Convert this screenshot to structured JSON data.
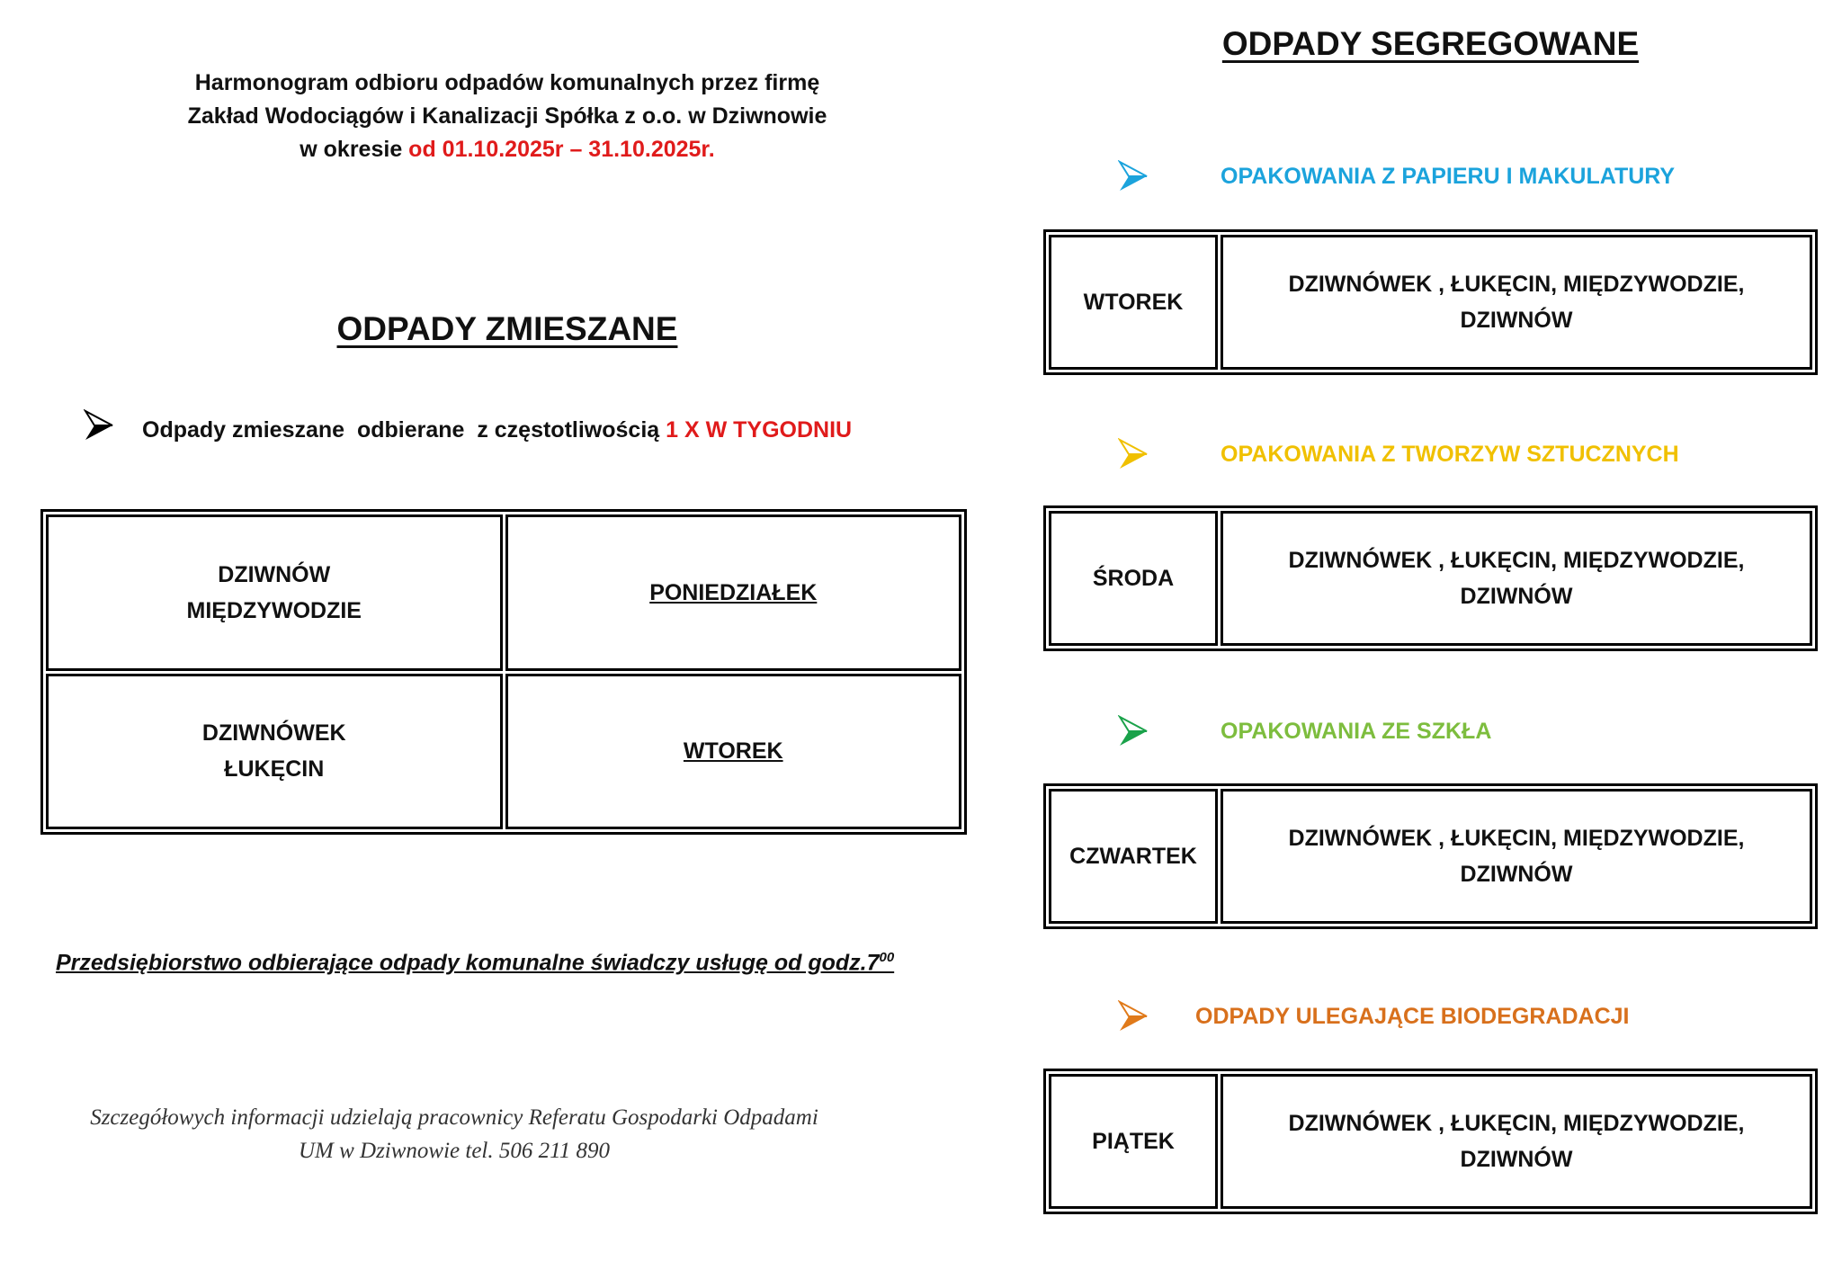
{
  "header": {
    "line1": "Harmonogram odbioru odpadów komunalnych przez firmę",
    "line2": "Zakład Wodociągów i Kanalizacji Spółka z o.o. w Dziwnowie",
    "line3_prefix": "w okresie ",
    "line3_period": "od 01.10.2025r – 31.10.2025r."
  },
  "mixed": {
    "title": "ODPADY ZMIESZANE",
    "frequency_prefix": "Odpady zmieszane  odbierane  z częstotliwością ",
    "frequency_value": "1 X W TYGODNIU",
    "rows": [
      {
        "places": [
          "DZIWNÓW",
          "MIĘDZYWODZIE"
        ],
        "day": "PONIEDZIAŁEK"
      },
      {
        "places": [
          "DZIWNÓWEK",
          "ŁUKĘCIN"
        ],
        "day": "WTOREK"
      }
    ]
  },
  "service_note": {
    "text": "Przedsiębiorstwo odbierające odpady komunalne świadczy usługę od godz.7",
    "sup": "00"
  },
  "info": {
    "line1": "Szczegółowych informacji udzielają pracownicy Referatu Gospodarki Odpadami",
    "line2": "UM w Dziwnowie  tel. 506 211 890"
  },
  "segregated": {
    "title": "ODPADY SEGREGOWANE",
    "sections": [
      {
        "label": "OPAKOWANIA Z PAPIERU I MAKULATURY",
        "color": "#1ba3dc",
        "arrow": "#1ba3dc",
        "day": "WTOREK",
        "places_line1": "DZIWNÓWEK , ŁUKĘCIN, MIĘDZYWODZIE,",
        "places_line2": "DZIWNÓW"
      },
      {
        "label": "OPAKOWANIA Z TWORZYW SZTUCZNYCH",
        "color": "#f0c000",
        "arrow": "#f0c000",
        "day": "ŚRODA",
        "places_line1": "DZIWNÓWEK , ŁUKĘCIN, MIĘDZYWODZIE,",
        "places_line2": "DZIWNÓW"
      },
      {
        "label": "OPAKOWANIA ZE SZKŁA",
        "color": "#7dbd3e",
        "arrow": "#1aa24a",
        "day": "CZWARTEK",
        "places_line1": "DZIWNÓWEK , ŁUKĘCIN, MIĘDZYWODZIE,",
        "places_line2": "DZIWNÓW"
      },
      {
        "label": "ODPADY ULEGAJĄCE BIODEGRADACJI",
        "color": "#d8701c",
        "arrow": "#e07a1a",
        "day": "PIĄTEK",
        "places_line1": "DZIWNÓWEK , ŁUKĘCIN, MIĘDZYWODZIE,",
        "places_line2": "DZIWNÓW"
      }
    ]
  }
}
